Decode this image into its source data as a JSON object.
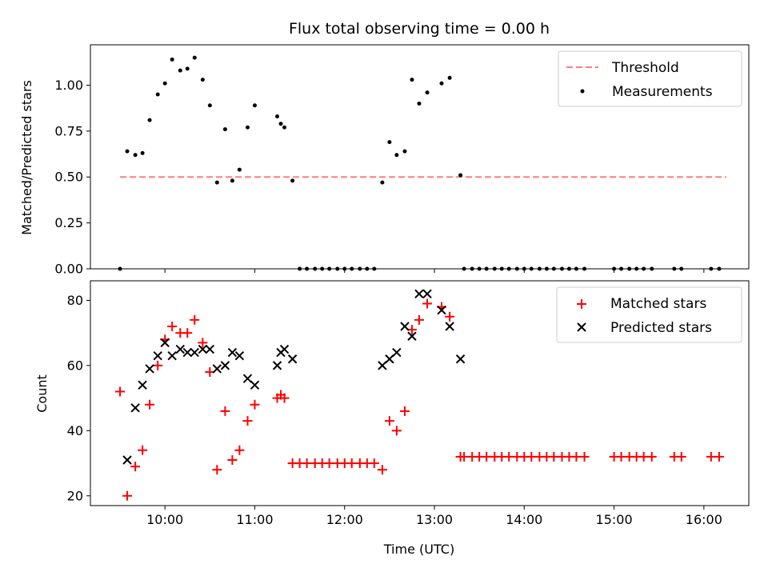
{
  "chart_data": [
    {
      "type": "scatter",
      "title": "Flux total observing time = 0.00 h",
      "ylabel": "Matched/Predicted stars",
      "xlim": [
        9.17,
        16.5
      ],
      "ylim": [
        0,
        1.22
      ],
      "yticks": [
        {
          "v": 0,
          "label": "0.00"
        },
        {
          "v": 0.25,
          "label": "0.25"
        },
        {
          "v": 0.5,
          "label": "0.50"
        },
        {
          "v": 0.75,
          "label": "0.75"
        },
        {
          "v": 1.0,
          "label": "1.00"
        }
      ],
      "legend_position": "top-right",
      "series": [
        {
          "name": "Threshold",
          "kind": "line",
          "color": "#ff7f7f",
          "x": [
            9.5,
            16.25
          ],
          "y": [
            0.5,
            0.5
          ]
        },
        {
          "name": "Measurements",
          "kind": "dot",
          "color": "#000000",
          "x": [
            9.5,
            9.58,
            9.67,
            9.75,
            9.83,
            9.92,
            10.0,
            10.08,
            10.17,
            10.25,
            10.33,
            10.42,
            10.5,
            10.58,
            10.67,
            10.75,
            10.83,
            10.92,
            11.0,
            11.25,
            11.29,
            11.33,
            11.42,
            11.5,
            11.58,
            11.67,
            11.75,
            11.83,
            11.92,
            12.0,
            12.08,
            12.17,
            12.25,
            12.33,
            12.42,
            12.5,
            12.58,
            12.67,
            12.75,
            12.83,
            12.92,
            13.08,
            13.17,
            13.29,
            13.33,
            13.42,
            13.5,
            13.58,
            13.67,
            13.75,
            13.83,
            13.92,
            14.0,
            14.08,
            14.17,
            14.25,
            14.33,
            14.42,
            14.5,
            14.58,
            14.67,
            15.0,
            15.08,
            15.17,
            15.25,
            15.33,
            15.42,
            15.67,
            15.75,
            16.08,
            16.17
          ],
          "y": [
            0.0,
            0.64,
            0.62,
            0.63,
            0.81,
            0.95,
            1.01,
            1.14,
            1.08,
            1.09,
            1.15,
            1.03,
            0.89,
            0.47,
            0.76,
            0.48,
            0.54,
            0.77,
            0.89,
            0.83,
            0.79,
            0.77,
            0.48,
            0.0,
            0.0,
            0.0,
            0.0,
            0.0,
            0.0,
            0.0,
            0.0,
            0.0,
            0.0,
            0.0,
            0.47,
            0.69,
            0.62,
            0.64,
            1.03,
            0.9,
            0.96,
            1.01,
            1.04,
            0.51,
            0.0,
            0.0,
            0.0,
            0.0,
            0.0,
            0.0,
            0.0,
            0.0,
            0.0,
            0.0,
            0.0,
            0.0,
            0.0,
            0.0,
            0.0,
            0.0,
            0.0,
            0.0,
            0.0,
            0.0,
            0.0,
            0.0,
            0.0,
            0.0,
            0.0,
            0.0,
            0.0
          ]
        }
      ]
    },
    {
      "type": "scatter",
      "xlabel": "Time (UTC)",
      "ylabel": "Count",
      "xlim": [
        9.17,
        16.5
      ],
      "ylim": [
        17,
        86
      ],
      "yticks": [
        {
          "v": 20,
          "label": "20"
        },
        {
          "v": 40,
          "label": "40"
        },
        {
          "v": 60,
          "label": "60"
        },
        {
          "v": 80,
          "label": "80"
        }
      ],
      "xticks": [
        {
          "v": 10,
          "label": "10:00"
        },
        {
          "v": 11,
          "label": "11:00"
        },
        {
          "v": 12,
          "label": "12:00"
        },
        {
          "v": 13,
          "label": "13:00"
        },
        {
          "v": 14,
          "label": "14:00"
        },
        {
          "v": 15,
          "label": "15:00"
        },
        {
          "v": 16,
          "label": "16:00"
        }
      ],
      "legend_position": "top-right",
      "series": [
        {
          "name": "Matched stars",
          "kind": "plus",
          "color": "#ff0000",
          "x": [
            9.5,
            9.58,
            9.67,
            9.75,
            9.83,
            9.92,
            10.0,
            10.08,
            10.17,
            10.25,
            10.33,
            10.42,
            10.5,
            10.58,
            10.67,
            10.75,
            10.83,
            10.92,
            11.0,
            11.25,
            11.29,
            11.33,
            11.42,
            11.5,
            11.58,
            11.67,
            11.75,
            11.83,
            11.92,
            12.0,
            12.08,
            12.17,
            12.25,
            12.33,
            12.42,
            12.5,
            12.58,
            12.67,
            12.75,
            12.83,
            12.92,
            13.08,
            13.17,
            13.29,
            13.33,
            13.42,
            13.5,
            13.58,
            13.67,
            13.75,
            13.83,
            13.92,
            14.0,
            14.08,
            14.17,
            14.25,
            14.33,
            14.42,
            14.5,
            14.58,
            14.67,
            15.0,
            15.08,
            15.17,
            15.25,
            15.33,
            15.42,
            15.67,
            15.75,
            16.08,
            16.17
          ],
          "y": [
            52,
            20,
            29,
            34,
            48,
            60,
            68,
            72,
            70,
            70,
            74,
            67,
            58,
            28,
            46,
            31,
            34,
            43,
            48,
            50,
            51,
            50,
            30,
            30,
            30,
            30,
            30,
            30,
            30,
            30,
            30,
            30,
            30,
            30,
            28,
            43,
            40,
            46,
            71,
            74,
            79,
            78,
            75,
            32,
            32,
            32,
            32,
            32,
            32,
            32,
            32,
            32,
            32,
            32,
            32,
            32,
            32,
            32,
            32,
            32,
            32,
            32,
            32,
            32,
            32,
            32,
            32,
            32,
            32,
            32,
            32
          ]
        },
        {
          "name": "Predicted stars",
          "kind": "x",
          "color": "#000000",
          "x": [
            9.58,
            9.67,
            9.75,
            9.83,
            9.92,
            10.0,
            10.08,
            10.17,
            10.25,
            10.33,
            10.42,
            10.5,
            10.58,
            10.67,
            10.75,
            10.83,
            10.92,
            11.0,
            11.25,
            11.29,
            11.33,
            11.42,
            12.42,
            12.5,
            12.58,
            12.67,
            12.75,
            12.83,
            12.92,
            13.08,
            13.17,
            13.29
          ],
          "y": [
            31,
            47,
            54,
            59,
            63,
            67,
            63,
            65,
            64,
            64,
            65,
            65,
            59,
            60,
            64,
            63,
            56,
            54,
            60,
            64,
            65,
            62,
            60,
            62,
            64,
            72,
            69,
            82,
            82,
            77,
            72,
            62
          ]
        }
      ]
    }
  ]
}
